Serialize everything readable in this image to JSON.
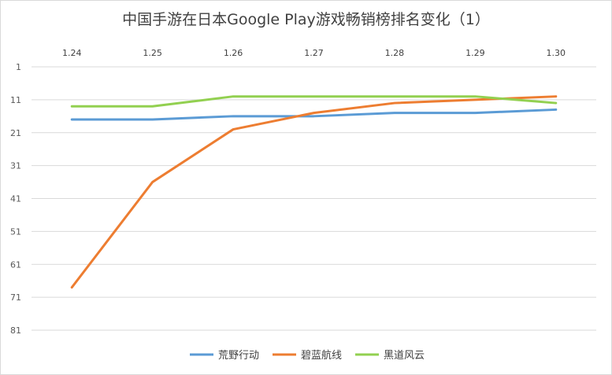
{
  "chart_data": {
    "type": "line",
    "title": "中国手游在日本Google Play游戏畅销榜排名变化（1）",
    "x": [
      "1.24",
      "1.25",
      "1.26",
      "1.27",
      "1.28",
      "1.29",
      "1.30"
    ],
    "y_ticks": [
      1,
      11,
      21,
      31,
      41,
      51,
      61,
      71,
      81
    ],
    "ylim": [
      1,
      81
    ],
    "y_reversed": true,
    "x_axis_position": "top",
    "grid": true,
    "legend_position": "bottom",
    "series": [
      {
        "name": "荒野行动",
        "color": "#5b9bd5",
        "values": [
          17,
          17,
          16,
          16,
          15,
          15,
          14
        ]
      },
      {
        "name": "碧蓝航线",
        "color": "#ed7d31",
        "values": [
          68,
          36,
          20,
          15,
          12,
          11,
          10
        ]
      },
      {
        "name": "黑道风云",
        "color": "#92d050",
        "values": [
          13,
          13,
          10,
          10,
          10,
          10,
          12
        ]
      }
    ]
  }
}
